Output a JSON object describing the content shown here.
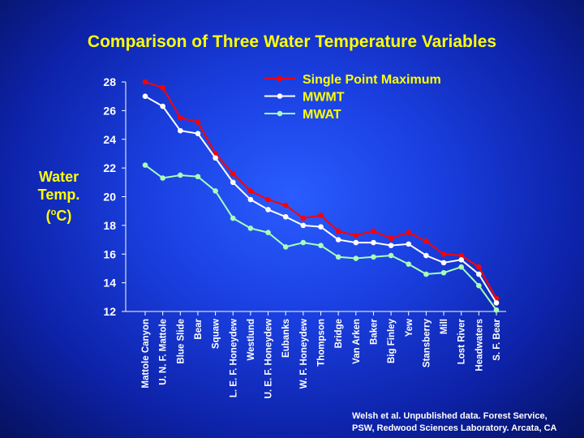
{
  "chart_data": {
    "type": "line",
    "title": "Comparison of Three Water Temperature Variables",
    "ylabel": {
      "line1": "Water",
      "line2": "Temp.",
      "unit_prefix": "(",
      "unit_sup": "o",
      "unit_suffix": "C)"
    },
    "ylim": [
      12,
      28
    ],
    "yticks": [
      12,
      14,
      16,
      18,
      20,
      22,
      24,
      26,
      28
    ],
    "grid": false,
    "legend_position": "top-right",
    "categories": [
      "Mattole Canyon",
      "U. N. F. Mattole",
      "Blue Slide",
      "Bear",
      "Squaw",
      "L. E. F. Honeydew",
      "Westlund",
      "U. E. F. Honeydew",
      "Eubanks",
      "W. F. Honeydew",
      "Thompson",
      "Bridge",
      "Van Arken",
      "Baker",
      "Big Finley",
      "Yew",
      "Stansberry",
      "Mill",
      "Lost River",
      "Headwaters",
      "S. F. Bear"
    ],
    "series": [
      {
        "name": "Single Point Maximum",
        "color": "#ff0000",
        "values": [
          28.0,
          27.6,
          25.5,
          25.2,
          23.0,
          21.6,
          20.4,
          19.8,
          19.4,
          18.5,
          18.7,
          17.6,
          17.3,
          17.6,
          17.1,
          17.5,
          16.9,
          16.0,
          15.9,
          15.1,
          12.9
        ]
      },
      {
        "name": "MWMT",
        "color": "#ffffff",
        "values": [
          27.0,
          26.3,
          24.6,
          24.4,
          22.7,
          21.0,
          19.8,
          19.1,
          18.6,
          18.0,
          17.9,
          17.0,
          16.8,
          16.8,
          16.6,
          16.7,
          15.9,
          15.4,
          15.6,
          14.6,
          12.6
        ]
      },
      {
        "name": "MWAT",
        "color": "#a8ffb8",
        "values": [
          22.2,
          21.3,
          21.5,
          21.4,
          20.4,
          18.5,
          17.8,
          17.5,
          16.5,
          16.8,
          16.6,
          15.8,
          15.7,
          15.8,
          15.9,
          15.3,
          14.6,
          14.7,
          15.1,
          13.8,
          12.1
        ]
      }
    ]
  },
  "credit": {
    "line1": "Welsh et al.  Unpublished data.  Forest Service,",
    "line2": "PSW, Redwood Sciences Laboratory. Arcata, CA"
  }
}
